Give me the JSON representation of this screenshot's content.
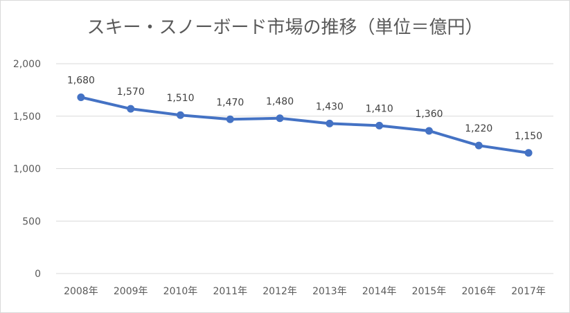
{
  "chart_data": {
    "type": "line",
    "title": "スキー・スノーボード市場の推移（単位＝億円）",
    "xlabel": "",
    "ylabel": "",
    "categories": [
      "2008年",
      "2009年",
      "2010年",
      "2011年",
      "2012年",
      "2013年",
      "2014年",
      "2015年",
      "2016年",
      "2017年"
    ],
    "series": [
      {
        "values": [
          1680,
          1570,
          1510,
          1470,
          1480,
          1430,
          1410,
          1360,
          1220,
          1150
        ]
      }
    ],
    "data_labels": [
      "1,680",
      "1,570",
      "1,510",
      "1,470",
      "1,480",
      "1,430",
      "1,410",
      "1,360",
      "1,220",
      "1,150"
    ],
    "y_ticks": [
      0,
      500,
      1000,
      1500,
      2000
    ],
    "y_tick_labels": [
      "0",
      "500",
      "1,000",
      "1,500",
      "2,000"
    ],
    "ylim": [
      0,
      2000
    ],
    "grid": true,
    "legend": "none",
    "colors": {
      "series": "#4472c4",
      "grid": "#d9d9d9",
      "text": "#595959"
    }
  }
}
